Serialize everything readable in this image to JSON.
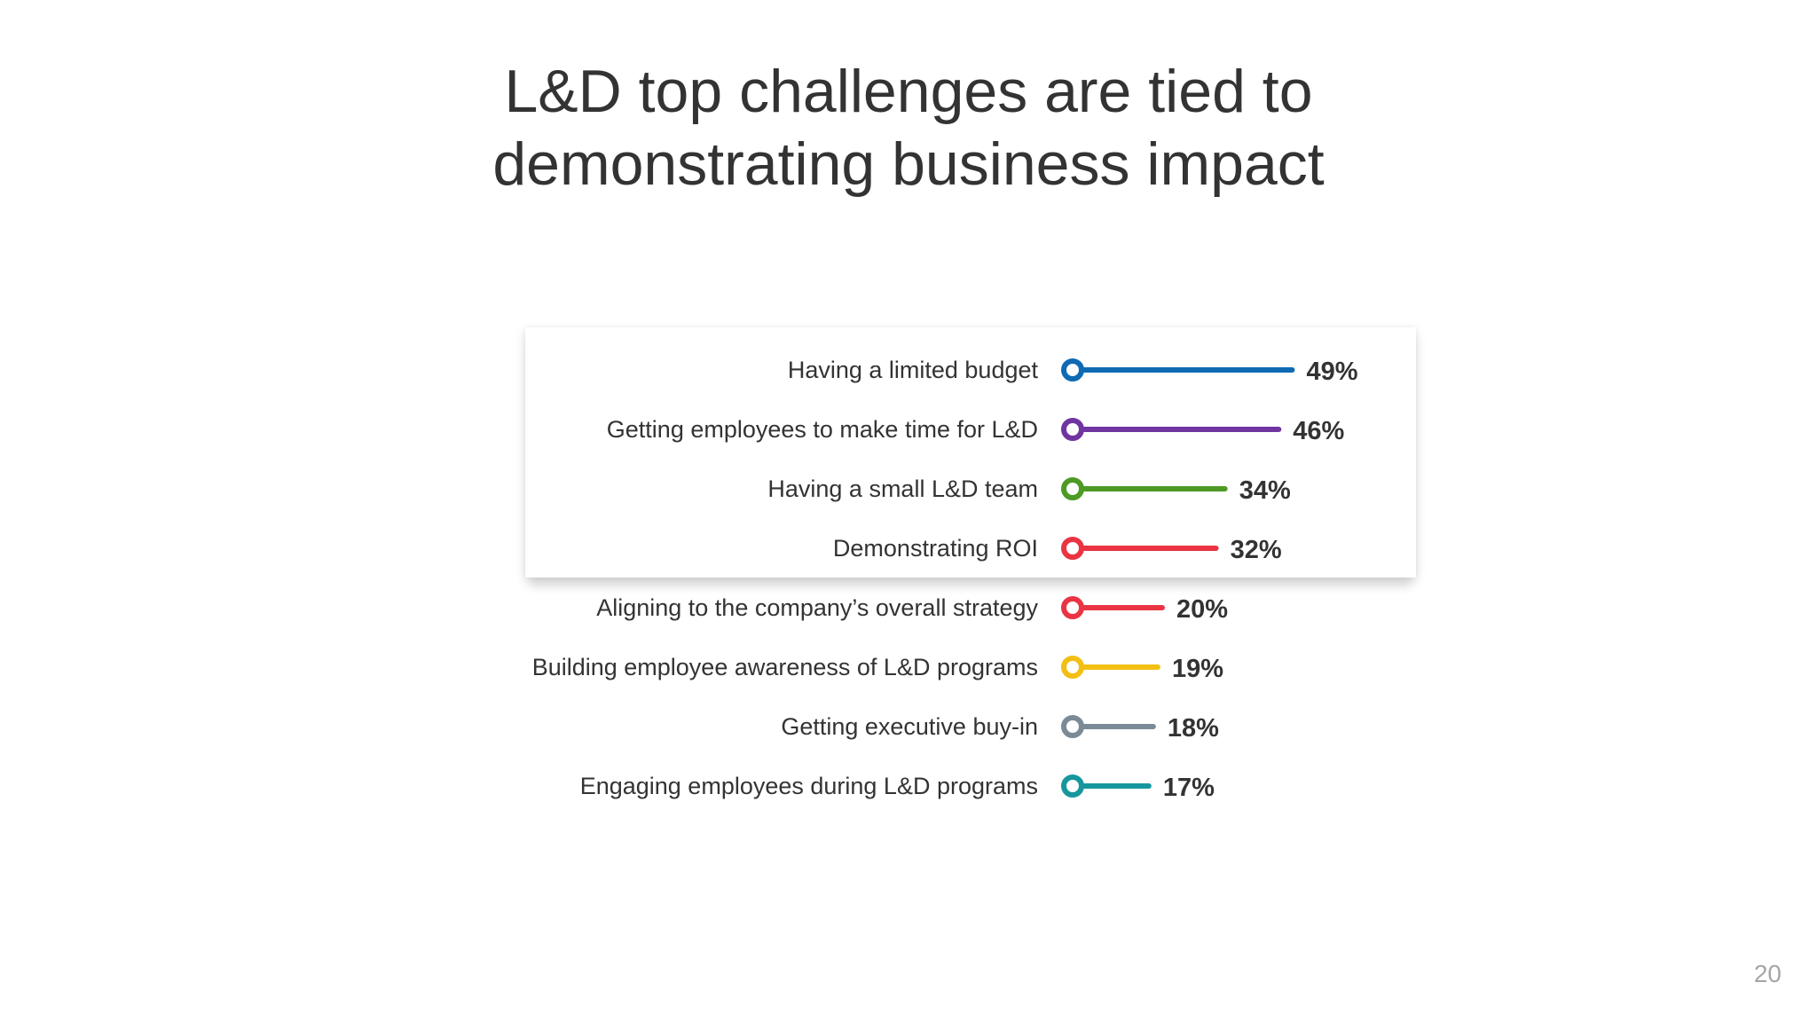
{
  "slide": {
    "title_line1": "L&D top challenges are tied to",
    "title_line2": "demonstrating business impact",
    "page_number": "20"
  },
  "chart_data": {
    "type": "bar",
    "orientation": "horizontal",
    "style": "lollipop",
    "categories": [
      "Having a limited budget",
      "Getting employees to make time for L&D",
      "Having a small L&D team",
      "Demonstrating ROI",
      "Aligning to the company’s overall strategy",
      "Building employee awareness of L&D programs",
      "Getting executive buy-in",
      "Engaging employees during L&D programs"
    ],
    "values": [
      49,
      46,
      34,
      32,
      20,
      19,
      18,
      17
    ],
    "value_labels": [
      "49%",
      "46%",
      "34%",
      "32%",
      "20%",
      "19%",
      "18%",
      "17%"
    ],
    "unit": "%",
    "colors": [
      "#0f6ab4",
      "#7035a0",
      "#4e9a24",
      "#ea3443",
      "#ea3443",
      "#f2bf12",
      "#7b8a97",
      "#16979d"
    ],
    "highlighted_count": 4,
    "grid": false,
    "legend": "none"
  }
}
